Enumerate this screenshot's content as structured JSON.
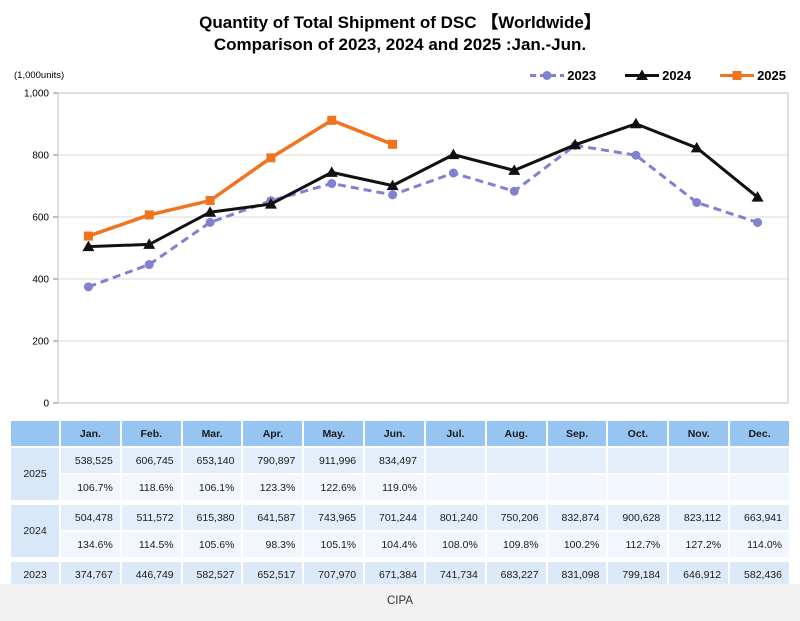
{
  "title": {
    "line1": "Quantity of Total Shipment of DSC 【Worldwide】",
    "line2": "Comparison of 2023, 2024 and 2025 :Jan.-Jun."
  },
  "axis_unit_label": "(1,000units)",
  "footer": {
    "source": "CIPA"
  },
  "colors": {
    "series_2023": "#8181d0",
    "series_2024": "#111111",
    "series_2025": "#f0731e",
    "grid": "#d9d9d9",
    "plot_border": "#bfbfbf",
    "tick": "#808080",
    "table_header_bg": "#97c5f2",
    "table_year_bg": "#d9e8f8",
    "table_units_bg": "#e3eefa",
    "table_yoy_bg": "#f1f7fd",
    "table_2023_bg": "#dbe9f9",
    "footer_bg": "#f2f2f2"
  },
  "chart_data": {
    "type": "line",
    "title": "Quantity of Total Shipment of DSC 【Worldwide】",
    "subtitle": "Comparison of 2023, 2024 and 2025 :Jan.-Jun.",
    "ylabel": "(1,000units)",
    "xlabel": "",
    "categories": [
      "Jan.",
      "Feb.",
      "Mar.",
      "Apr.",
      "May.",
      "Jun.",
      "Jul.",
      "Aug.",
      "Sep.",
      "Oct.",
      "Nov.",
      "Dec."
    ],
    "ylim": [
      0,
      1000
    ],
    "yticks": [
      0,
      200,
      400,
      600,
      800,
      1000
    ],
    "yticklabels": [
      "0",
      "200",
      "400",
      "600",
      "800",
      "1,000"
    ],
    "grid": true,
    "legend_position": "top-right",
    "series": [
      {
        "name": "2023",
        "color": "#8181d0",
        "marker": "circle",
        "dashed": true,
        "values": [
          374.767,
          446.749,
          582.527,
          652.517,
          707.97,
          671.384,
          741.734,
          683.227,
          831.098,
          799.184,
          646.912,
          582.436
        ]
      },
      {
        "name": "2024",
        "color": "#111111",
        "marker": "triangle",
        "dashed": false,
        "values": [
          504.478,
          511.572,
          615.38,
          641.587,
          743.965,
          701.244,
          801.24,
          750.206,
          832.874,
          900.628,
          823.112,
          663.941
        ]
      },
      {
        "name": "2025",
        "color": "#f0731e",
        "marker": "square",
        "dashed": false,
        "values": [
          538.525,
          606.745,
          653.14,
          790.897,
          911.996,
          834.497
        ]
      }
    ]
  },
  "table": {
    "corner": "",
    "columns": [
      "Jan.",
      "Feb.",
      "Mar.",
      "Apr.",
      "May.",
      "Jun.",
      "Jul.",
      "Aug.",
      "Sep.",
      "Oct.",
      "Nov.",
      "Dec."
    ],
    "row_groups": [
      {
        "year": "2025",
        "units": [
          "538,525",
          "606,745",
          "653,140",
          "790,897",
          "911,996",
          "834,497",
          "",
          "",
          "",
          "",
          "",
          ""
        ],
        "yoy": [
          "106.7%",
          "118.6%",
          "106.1%",
          "123.3%",
          "122.6%",
          "119.0%",
          "",
          "",
          "",
          "",
          "",
          ""
        ]
      },
      {
        "year": "2024",
        "units": [
          "504,478",
          "511,572",
          "615,380",
          "641,587",
          "743,965",
          "701,244",
          "801,240",
          "750,206",
          "832,874",
          "900,628",
          "823,112",
          "663,941"
        ],
        "yoy": [
          "134.6%",
          "114.5%",
          "105.6%",
          "98.3%",
          "105.1%",
          "104.4%",
          "108.0%",
          "109.8%",
          "100.2%",
          "112.7%",
          "127.2%",
          "114.0%"
        ]
      },
      {
        "year": "2023",
        "units": [
          "374,767",
          "446,749",
          "582,527",
          "652,517",
          "707,970",
          "671,384",
          "741,734",
          "683,227",
          "831,098",
          "799,184",
          "646,912",
          "582,436"
        ]
      }
    ]
  }
}
